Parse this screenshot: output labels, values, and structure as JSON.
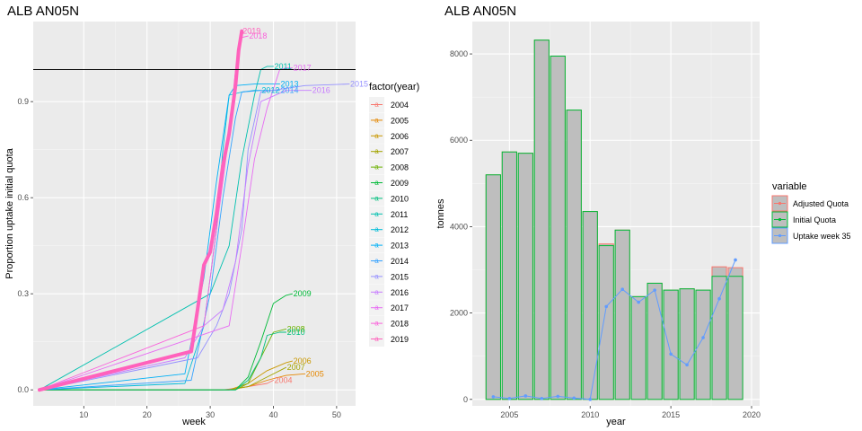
{
  "left_chart": {
    "title": "ALB AN05N",
    "xlabel": "week",
    "ylabel": "Proportion uptake initial quota",
    "legend_title": "factor(year)"
  },
  "right_chart": {
    "title": "ALB AN05N",
    "xlabel": "year",
    "ylabel": "tonnes",
    "legend_title": "variable"
  },
  "chart_data": [
    {
      "type": "line",
      "title": "ALB AN05N",
      "xlabel": "week",
      "ylabel": "Proportion uptake initial quota",
      "xlim": [
        2,
        53
      ],
      "ylim": [
        -0.05,
        1.15
      ],
      "x_ticks": [
        10,
        20,
        30,
        40,
        50
      ],
      "y_ticks": [
        0.0,
        0.3,
        0.6,
        0.9
      ],
      "y_tick_labels": [
        "0.0",
        "0.3",
        "0.6",
        "0.9"
      ],
      "reference_line_y": 1.0,
      "legend_title": "factor(year)",
      "legend_position": "right",
      "grid": true,
      "series": [
        {
          "name": "2004",
          "color": "#F8766D",
          "points": [
            [
              27,
              0
            ],
            [
              32,
              0
            ],
            [
              36,
              0.01
            ],
            [
              39,
              0.02
            ],
            [
              40,
              0.03
            ]
          ],
          "end_label": "2004"
        },
        {
          "name": "2005",
          "color": "#E58700",
          "points": [
            [
              33,
              0
            ],
            [
              36,
              0.01
            ],
            [
              39,
              0.03
            ],
            [
              42,
              0.045
            ],
            [
              45,
              0.05
            ]
          ],
          "end_label": "2005"
        },
        {
          "name": "2006",
          "color": "#C99800",
          "points": [
            [
              33,
              0
            ],
            [
              36,
              0.02
            ],
            [
              39,
              0.06
            ],
            [
              42,
              0.085
            ],
            [
              43,
              0.09
            ]
          ],
          "end_label": "2006"
        },
        {
          "name": "2007",
          "color": "#A3A500",
          "points": [
            [
              33,
              0
            ],
            [
              36,
              0.01
            ],
            [
              39,
              0.04
            ],
            [
              41,
              0.06
            ],
            [
              42,
              0.07
            ]
          ],
          "end_label": "2007"
        },
        {
          "name": "2008",
          "color": "#6BB100",
          "points": [
            [
              34,
              0
            ],
            [
              36,
              0.02
            ],
            [
              38,
              0.1
            ],
            [
              40,
              0.18
            ],
            [
              42,
              0.19
            ]
          ],
          "end_label": "2008"
        },
        {
          "name": "2009",
          "color": "#00BA38",
          "points": [
            [
              34,
              0
            ],
            [
              36,
              0.04
            ],
            [
              38,
              0.15
            ],
            [
              40,
              0.27
            ],
            [
              42,
              0.295
            ],
            [
              43,
              0.3
            ]
          ],
          "end_label": "2009"
        },
        {
          "name": "2010",
          "color": "#00BF7D",
          "points": [
            [
              34,
              0
            ],
            [
              36,
              0.03
            ],
            [
              38,
              0.1
            ],
            [
              39,
              0.17
            ],
            [
              41,
              0.18
            ],
            [
              42,
              0.18
            ]
          ],
          "end_label": "2010"
        },
        {
          "name": "2011",
          "color": "#00C0AF",
          "points": [
            [
              30,
              0.3
            ],
            [
              33,
              0.45
            ],
            [
              35,
              0.72
            ],
            [
              37,
              0.92
            ],
            [
              38,
              1.0
            ],
            [
              39,
              1.01
            ],
            [
              40,
              1.01
            ]
          ],
          "end_label": "2011"
        },
        {
          "name": "2012",
          "color": "#00BCD8",
          "points": [
            [
              26,
              0.02
            ],
            [
              29,
              0.2
            ],
            [
              31,
              0.5
            ],
            [
              32,
              0.75
            ],
            [
              33,
              0.92
            ],
            [
              35,
              0.93
            ],
            [
              37,
              0.935
            ],
            [
              38,
              0.935
            ]
          ],
          "end_label": "2012"
        },
        {
          "name": "2013",
          "color": "#00B0F6",
          "points": [
            [
              26,
              0.05
            ],
            [
              29,
              0.35
            ],
            [
              31,
              0.65
            ],
            [
              33,
              0.92
            ],
            [
              34,
              0.95
            ],
            [
              37,
              0.955
            ],
            [
              40,
              0.955
            ],
            [
              41,
              0.955
            ]
          ],
          "end_label": "2013"
        },
        {
          "name": "2014",
          "color": "#35A2FF",
          "points": [
            [
              27,
              0.03
            ],
            [
              30,
              0.3
            ],
            [
              32,
              0.6
            ],
            [
              34,
              0.85
            ],
            [
              35,
              0.93
            ],
            [
              38,
              0.935
            ],
            [
              41,
              0.935
            ]
          ],
          "end_label": "2014"
        },
        {
          "name": "2015",
          "color": "#9590FF",
          "points": [
            [
              28,
              0.1
            ],
            [
              31,
              0.2
            ],
            [
              33,
              0.3
            ],
            [
              35,
              0.5
            ],
            [
              36,
              0.75
            ],
            [
              38,
              0.93
            ],
            [
              45,
              0.95
            ],
            [
              52,
              0.955
            ]
          ],
          "end_label": "2015"
        },
        {
          "name": "2016",
          "color": "#C77CFF",
          "points": [
            [
              26,
              0.1
            ],
            [
              29,
              0.2
            ],
            [
              32,
              0.25
            ],
            [
              34,
              0.4
            ],
            [
              36,
              0.7
            ],
            [
              38,
              0.9
            ],
            [
              42,
              0.935
            ],
            [
              46,
              0.935
            ]
          ],
          "end_label": "2016"
        },
        {
          "name": "2017",
          "color": "#E76BF3",
          "points": [
            [
              33,
              0.2
            ],
            [
              35,
              0.45
            ],
            [
              37,
              0.72
            ],
            [
              39,
              0.88
            ],
            [
              41,
              1.0
            ],
            [
              42,
              1.005
            ],
            [
              43,
              1.005
            ]
          ],
          "end_label": "2017"
        },
        {
          "name": "2018",
          "color": "#FA62DB",
          "points": [
            [
              29,
              0.2
            ],
            [
              31,
              0.5
            ],
            [
              33,
              0.8
            ],
            [
              34,
              1.0
            ],
            [
              35,
              1.1
            ],
            [
              36,
              1.105
            ]
          ],
          "end_label": "2018"
        },
        {
          "name": "2019",
          "color": "#FF62BC",
          "points": [
            [
              27,
              0.12
            ],
            [
              28,
              0.25
            ],
            [
              29,
              0.39
            ],
            [
              30,
              0.43
            ],
            [
              31,
              0.55
            ],
            [
              32,
              0.7
            ],
            [
              33,
              0.8
            ],
            [
              34,
              0.95
            ],
            [
              34.5,
              1.06
            ],
            [
              35,
              1.12
            ]
          ],
          "end_label": "2019",
          "thick": true
        }
      ]
    },
    {
      "type": "bar",
      "title": "ALB AN05N",
      "xlabel": "year",
      "ylabel": "tonnes",
      "xlim": [
        2002.7,
        2020.5
      ],
      "ylim": [
        -150,
        8750
      ],
      "x_ticks": [
        2005,
        2010,
        2015,
        2020
      ],
      "y_ticks": [
        0,
        2000,
        4000,
        6000,
        8000
      ],
      "legend_title": "variable",
      "legend_position": "right",
      "grid": true,
      "categories": [
        2004,
        2005,
        2006,
        2007,
        2008,
        2009,
        2010,
        2011,
        2012,
        2013,
        2014,
        2015,
        2016,
        2017,
        2018,
        2019
      ],
      "series": [
        {
          "name": "Adjusted Quota",
          "color": "#F8766D",
          "values": [
            5200,
            5730,
            5700,
            8320,
            7950,
            6700,
            4350,
            3600,
            3920,
            2380,
            2690,
            2530,
            2560,
            2530,
            3070,
            3050
          ]
        },
        {
          "name": "Initial Quota",
          "color": "#00BA38",
          "values": [
            5200,
            5730,
            5700,
            8320,
            7950,
            6700,
            4350,
            3560,
            3920,
            2380,
            2690,
            2530,
            2560,
            2530,
            2850,
            2850
          ]
        },
        {
          "name": "Uptake week 35",
          "color": "#619CFF",
          "values": [
            60,
            20,
            80,
            20,
            70,
            30,
            0,
            2150,
            2550,
            2250,
            2530,
            1050,
            800,
            1430,
            2330,
            3230
          ]
        }
      ]
    }
  ]
}
